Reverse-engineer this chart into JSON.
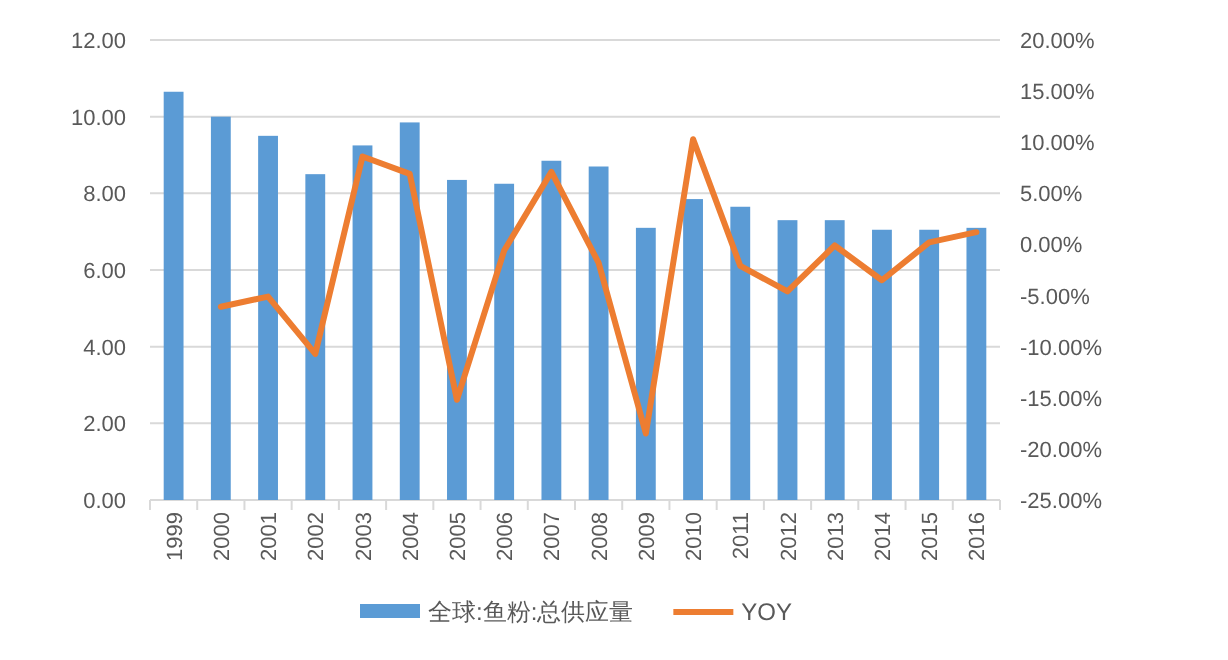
{
  "chart_data": {
    "type": "bar",
    "categories": [
      "1999",
      "2000",
      "2001",
      "2002",
      "2003",
      "2004",
      "2005",
      "2006",
      "2007",
      "2008",
      "2009",
      "2010",
      "2011",
      "2012",
      "2013",
      "2014",
      "2015",
      "2016"
    ],
    "series": [
      {
        "name": "全球:鱼粉:总供应量",
        "color": "#5b9bd5",
        "values": [
          10.65,
          10.0,
          9.5,
          8.5,
          9.25,
          9.85,
          8.35,
          8.25,
          8.85,
          8.7,
          7.1,
          7.85,
          7.65,
          7.3,
          7.3,
          7.05,
          7.05,
          7.1
        ]
      },
      {
        "name": "YOY",
        "type": "line",
        "axis": "y2",
        "color": "#ed7d31",
        "values": [
          null,
          -6.1,
          -5.1,
          -10.7,
          8.6,
          6.9,
          -15.2,
          -0.6,
          7.1,
          -1.8,
          -18.5,
          10.3,
          -2.1,
          -4.6,
          -0.1,
          -3.5,
          0.2,
          1.2
        ]
      }
    ],
    "ylim": [
      0,
      12
    ],
    "yticks": [
      {
        "value": 0,
        "label": "0.00"
      },
      {
        "value": 2,
        "label": "2.00"
      },
      {
        "value": 4,
        "label": "4.00"
      },
      {
        "value": 6,
        "label": "6.00"
      },
      {
        "value": 8,
        "label": "8.00"
      },
      {
        "value": 10,
        "label": "10.00"
      },
      {
        "value": 12,
        "label": "12.00"
      }
    ],
    "y2lim": [
      -25,
      20
    ],
    "y2ticks": [
      {
        "value": -25,
        "label": "-25.00%"
      },
      {
        "value": -20,
        "label": "-20.00%"
      },
      {
        "value": -15,
        "label": "-15.00%"
      },
      {
        "value": -10,
        "label": "-10.00%"
      },
      {
        "value": -5,
        "label": "-5.00%"
      },
      {
        "value": 0,
        "label": "0.00%"
      },
      {
        "value": 5,
        "label": "5.00%"
      },
      {
        "value": 10,
        "label": "10.00%"
      },
      {
        "value": 15,
        "label": "15.00%"
      },
      {
        "value": 20,
        "label": "20.00%"
      }
    ],
    "grid": "y",
    "legend": "bottom"
  }
}
